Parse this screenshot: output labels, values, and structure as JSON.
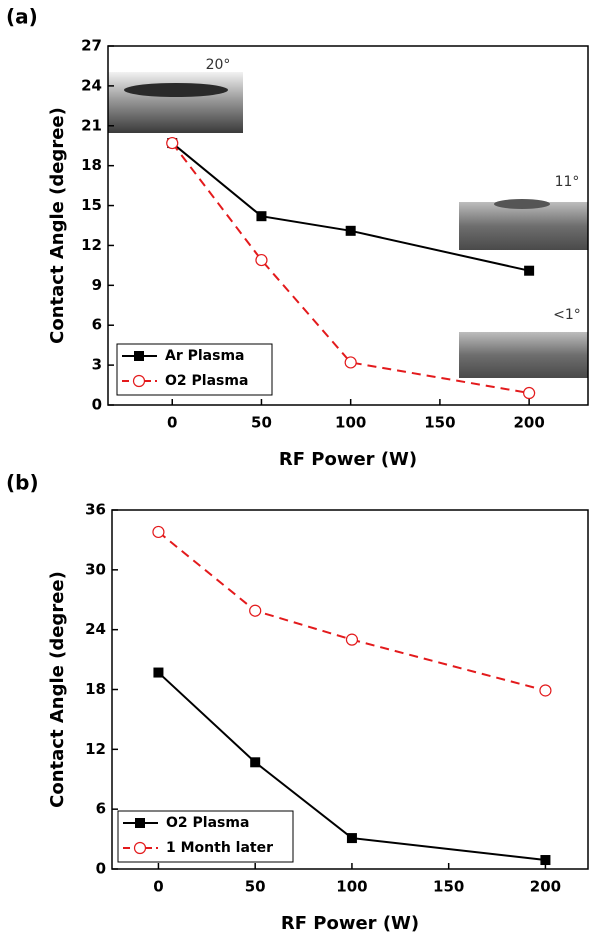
{
  "chart_data": [
    {
      "type": "line",
      "panel_label": "(a)",
      "xlabel": "RF Power (W)",
      "ylabel": "Contact Angle (degree)",
      "x": [
        0,
        50,
        100,
        200
      ],
      "xlim": [
        -36,
        233
      ],
      "xticks": [
        0,
        50,
        100,
        150,
        200
      ],
      "ylim": [
        0,
        27
      ],
      "yticks": [
        0,
        3,
        6,
        9,
        12,
        15,
        18,
        21,
        24,
        27
      ],
      "legend": "lower left",
      "series": [
        {
          "name": "Ar Plasma",
          "color": "#000000",
          "marker": "square",
          "dashed": false,
          "values": [
            19.7,
            14.2,
            13.1,
            10.1
          ]
        },
        {
          "name": "O2 Plasma",
          "color": "#e31a1c",
          "marker": "open-circle",
          "dashed": true,
          "values": [
            19.7,
            10.9,
            3.2,
            0.9
          ]
        }
      ],
      "annotations": [
        "20°",
        "11°",
        "<1°"
      ]
    },
    {
      "type": "line",
      "panel_label": "(b)",
      "xlabel": "RF Power (W)",
      "ylabel": "Contact Angle (degree)",
      "x": [
        0,
        50,
        100,
        200
      ],
      "xlim": [
        -24,
        222
      ],
      "xticks": [
        0,
        50,
        100,
        150,
        200
      ],
      "ylim": [
        0,
        36
      ],
      "yticks": [
        0,
        6,
        12,
        18,
        24,
        30,
        36
      ],
      "legend": "lower left",
      "series": [
        {
          "name": "O2 Plasma",
          "color": "#000000",
          "marker": "square",
          "dashed": false,
          "values": [
            19.7,
            10.7,
            3.1,
            0.9
          ]
        },
        {
          "name": "1 Month later",
          "color": "#e31a1c",
          "marker": "open-circle",
          "dashed": true,
          "values": [
            33.8,
            25.9,
            23.0,
            17.9
          ]
        }
      ]
    }
  ]
}
